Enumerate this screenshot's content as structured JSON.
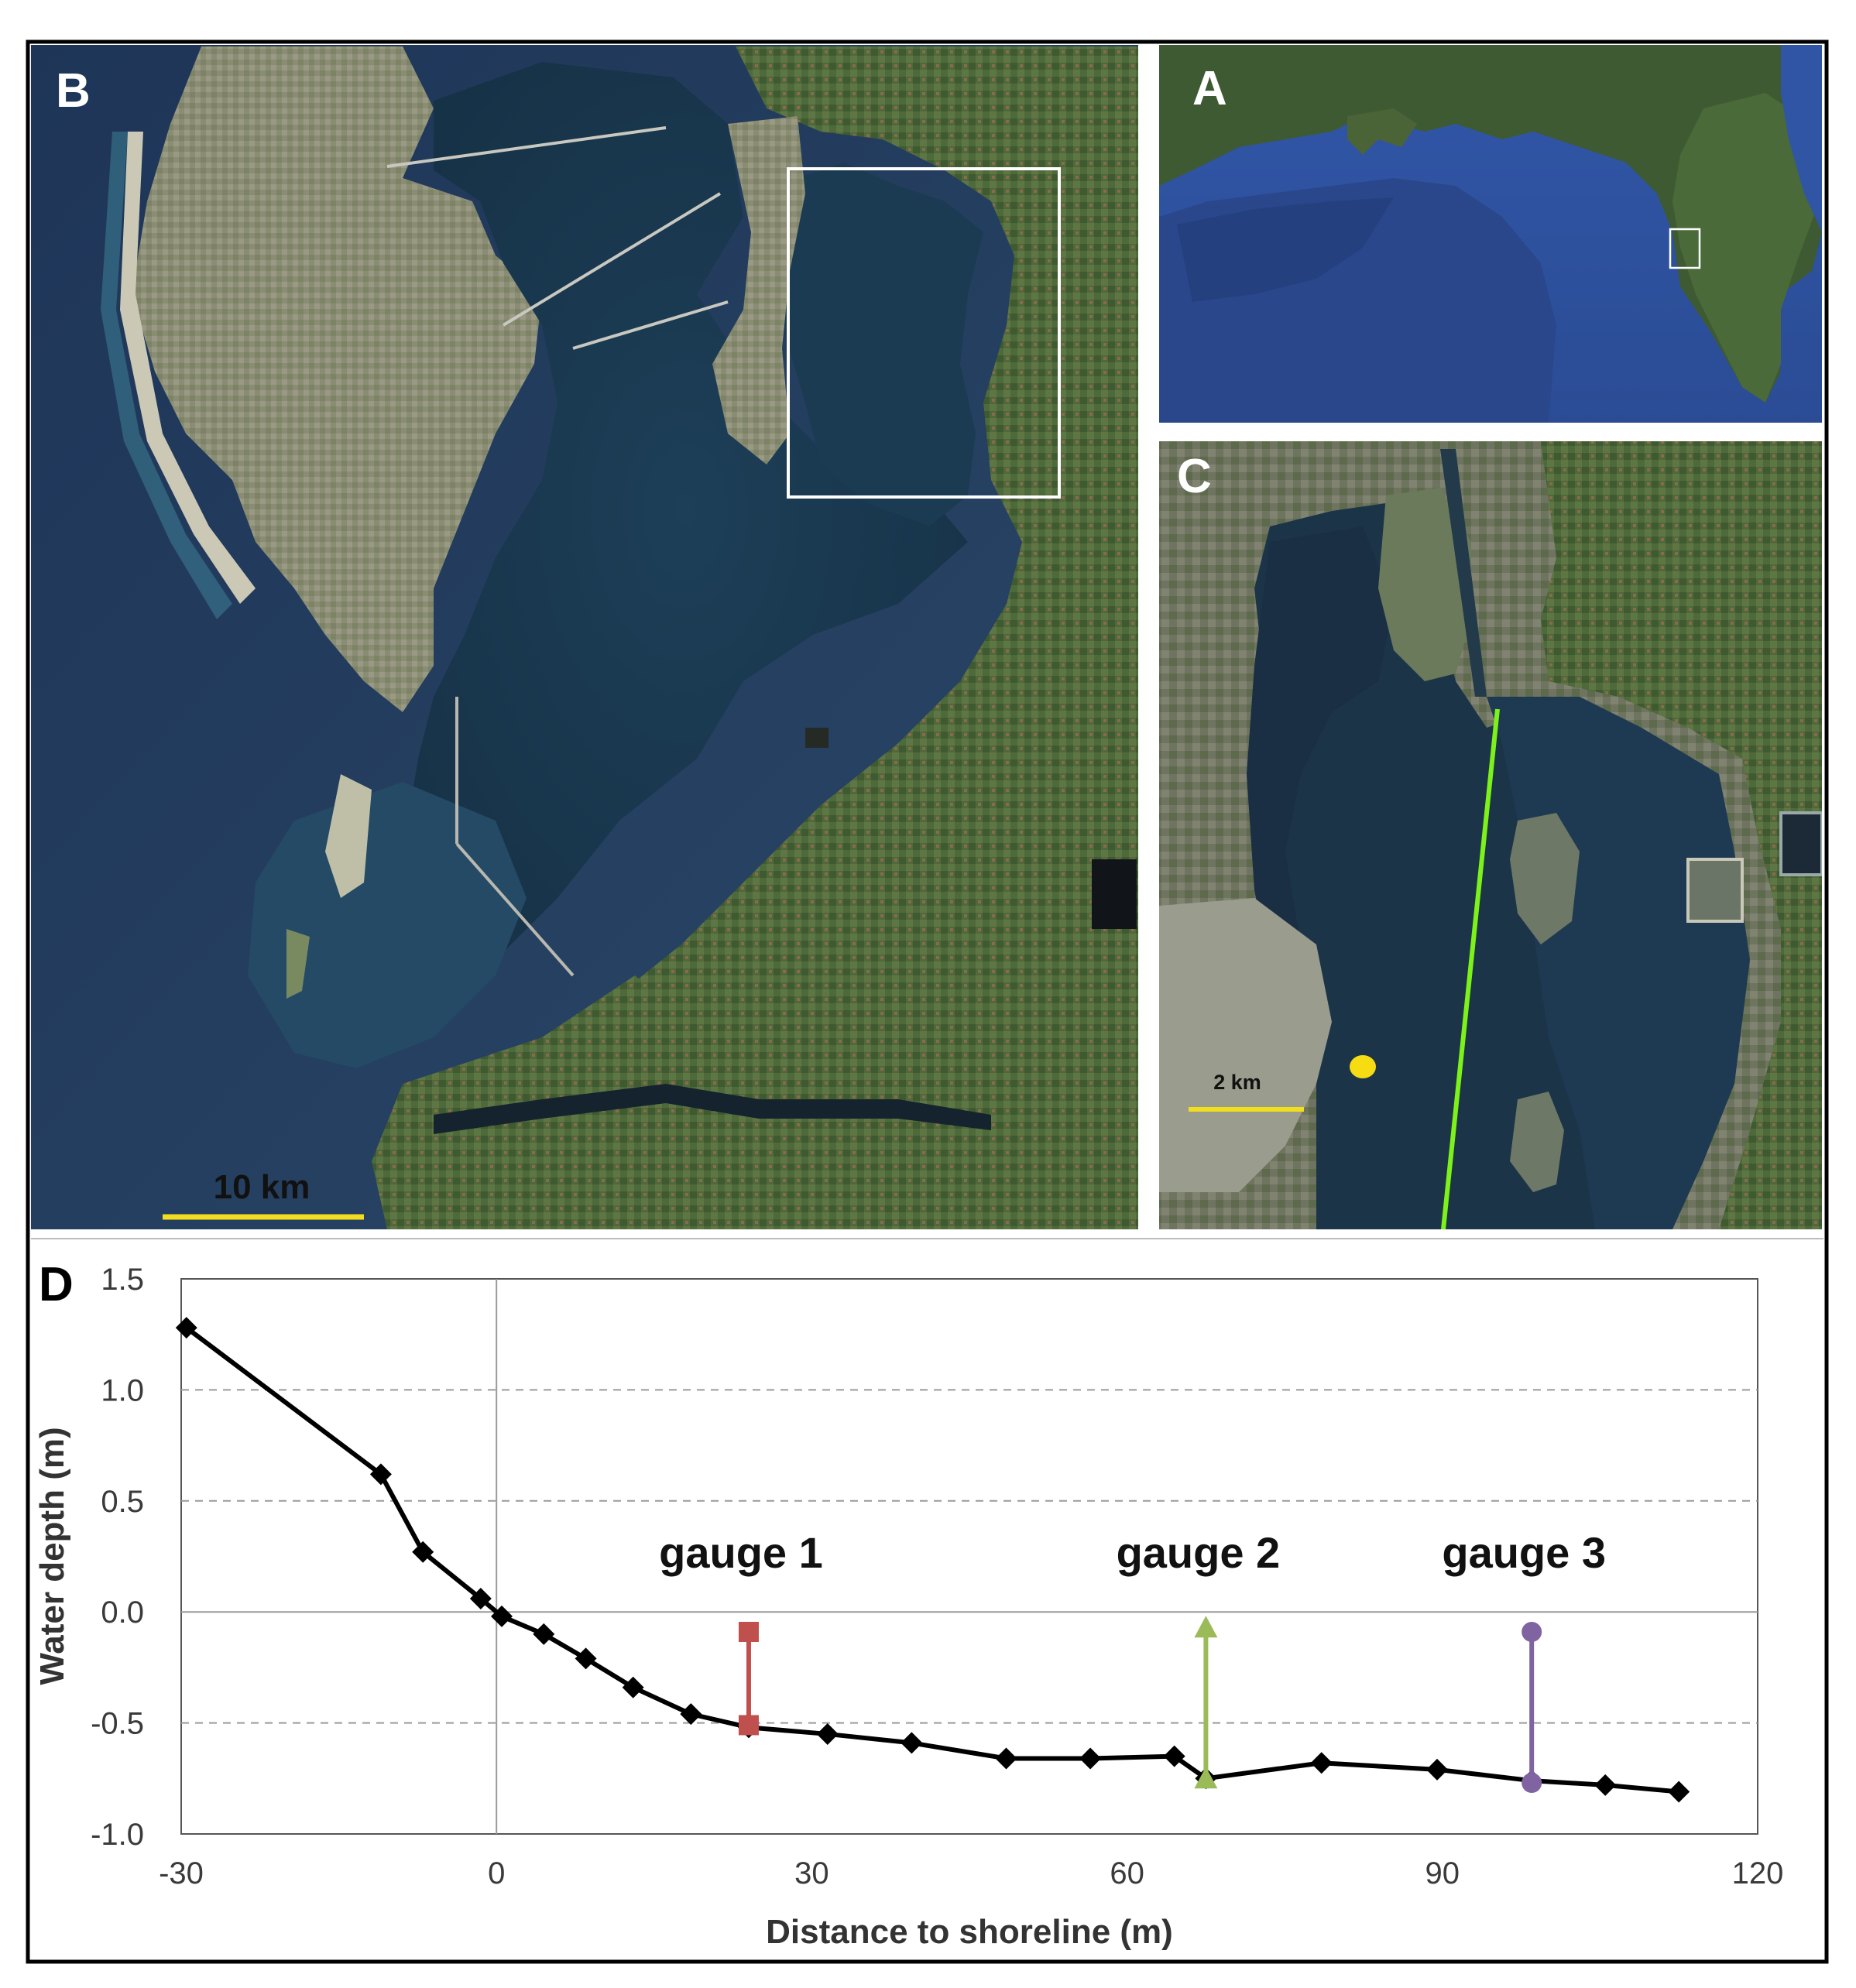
{
  "panels": {
    "B": {
      "letter": "B",
      "scale_label": "10 km",
      "scale_color": "#f2de1e"
    },
    "A": {
      "letter": "A"
    },
    "C": {
      "letter": "C",
      "scale_label": "2 km",
      "scale_color": "#f2de1e",
      "transect_color": "#7cf21a",
      "point_color": "#f6dc12"
    },
    "D": {
      "letter": "D"
    }
  },
  "chart_data": {
    "type": "line",
    "title": "",
    "xlabel": "Distance to shoreline (m)",
    "ylabel": "Water depth (m)",
    "xlim": [
      -30,
      120
    ],
    "ylim": [
      -1.0,
      1.5
    ],
    "xticks": [
      "-30",
      "0",
      "30",
      "60",
      "90",
      "120"
    ],
    "yticks": [
      "1.5",
      "1.0",
      "0.5",
      "0.0",
      "-0.5",
      "-1.0"
    ],
    "xtick_values": [
      -30,
      0,
      30,
      60,
      90,
      120
    ],
    "ytick_values": [
      1.5,
      1.0,
      0.5,
      0.0,
      -0.5,
      -1.0
    ],
    "grid": "horizontal dashed",
    "series": [
      {
        "color": "#000000",
        "x": [
          -29.5,
          -11,
          -7,
          -1.5,
          0.5,
          4.5,
          8.5,
          13,
          18.5,
          24,
          31.5,
          39.5,
          48.5,
          56.5,
          64.5,
          67.5,
          78.5,
          89.5,
          98.5,
          105.5,
          112.5
        ],
        "y": [
          1.28,
          0.62,
          0.27,
          0.06,
          -0.02,
          -0.1,
          -0.21,
          -0.34,
          -0.46,
          -0.52,
          -0.55,
          -0.59,
          -0.66,
          -0.66,
          -0.65,
          -0.75,
          -0.68,
          -0.71,
          -0.76,
          -0.78,
          -0.81
        ]
      }
    ],
    "gauges": [
      {
        "label": "gauge 1",
        "x": 24,
        "y_top": -0.09,
        "y_bottom": -0.51,
        "color": "#c0504d",
        "marker": "square"
      },
      {
        "label": "gauge 2",
        "x": 67.5,
        "y_top": -0.07,
        "y_bottom": -0.75,
        "color": "#9bbb59",
        "marker": "triangle"
      },
      {
        "label": "gauge 3",
        "x": 98.5,
        "y_top": -0.09,
        "y_bottom": -0.77,
        "color": "#8064a2",
        "marker": "circle"
      }
    ]
  }
}
